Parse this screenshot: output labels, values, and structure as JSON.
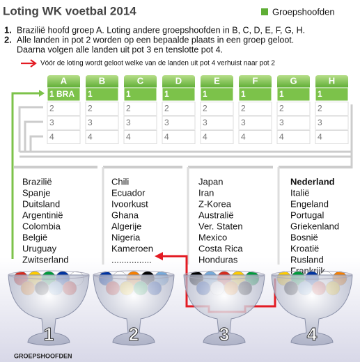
{
  "header": {
    "title": "Loting WK voetbal 2014",
    "legend": "Groepshoofden"
  },
  "instructions": [
    {
      "number": "1.",
      "text": [
        "Brazilië hoofd groep A. Loting andere groepshoofden in B, C, D, E, F, G, H."
      ]
    },
    {
      "number": "2.",
      "text": [
        "Alle landen in pot 2 worden op een bepaalde plaats in een groep geloot.",
        "Daarna volgen alle landen uit pot 3 en tenslotte pot 4."
      ]
    }
  ],
  "note": "Vóór de loting wordt geloot welke van de landen uit pot 4 verhuist naar pot 2",
  "table": {
    "groups": [
      {
        "letter": "A",
        "slots": [
          "1 BRA",
          "2",
          "3",
          "4"
        ]
      },
      {
        "letter": "B",
        "slots": [
          "1",
          "2",
          "3",
          "4"
        ]
      },
      {
        "letter": "C",
        "slots": [
          "1",
          "2",
          "3",
          "4"
        ]
      },
      {
        "letter": "D",
        "slots": [
          "1",
          "2",
          "3",
          "4"
        ]
      },
      {
        "letter": "E",
        "slots": [
          "1",
          "2",
          "3",
          "4"
        ]
      },
      {
        "letter": "F",
        "slots": [
          "1",
          "2",
          "3",
          "4"
        ]
      },
      {
        "letter": "G",
        "slots": [
          "1",
          "2",
          "3",
          "4"
        ]
      },
      {
        "letter": "H",
        "slots": [
          "1",
          "2",
          "3",
          "4"
        ]
      }
    ]
  },
  "pots": [
    {
      "label": "1",
      "countries": [
        "Brazilië",
        "Spanje",
        "Duitsland",
        "Argentinië",
        "Colombia",
        "België",
        "Uruguay",
        "Zwitserland"
      ]
    },
    {
      "label": "2",
      "countries": [
        "Chili",
        "Ecuador",
        "Ivoorkust",
        "Ghana",
        "Algerije",
        "Nigeria",
        "Kameroen",
        "................"
      ]
    },
    {
      "label": "3",
      "countries": [
        "Japan",
        "Iran",
        "Z-Korea",
        "Australië",
        "Ver. Staten",
        "Mexico",
        "Costa Rica",
        "Honduras"
      ]
    },
    {
      "label": "4",
      "countries": [
        "Nederland",
        "Italië",
        "Engeland",
        "Portugal",
        "Griekenland",
        "Bosnië",
        "Kroatië",
        "Rusland",
        "Frankrijk"
      ]
    }
  ],
  "footer": "GROEPSHOOFDEN"
}
